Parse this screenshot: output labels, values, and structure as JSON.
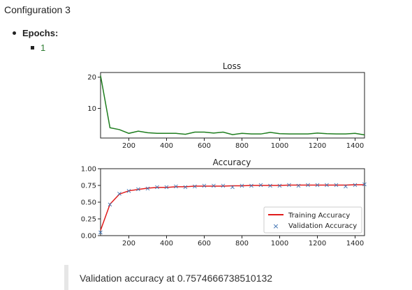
{
  "page": {
    "heading": "Configuration 3",
    "params": [
      {
        "label": "Epochs:",
        "value": "1"
      }
    ],
    "validation_note": "Validation accuracy at 0.7574666738510132"
  },
  "colors": {
    "loss_line": "#1e7d1e",
    "training_line": "#e01b1b",
    "validation_marker": "#3a6fb0"
  },
  "chart_data": [
    {
      "type": "line",
      "title": "Loss",
      "xlabel": "",
      "ylabel": "",
      "xlim": [
        50,
        1450
      ],
      "ylim": [
        0.5,
        21.5
      ],
      "xticks": [
        200,
        400,
        600,
        800,
        1000,
        1200,
        1400
      ],
      "yticks": [
        10,
        20
      ],
      "series": [
        {
          "x": [
            50,
            100,
            150,
            200,
            250,
            300,
            350,
            400,
            450,
            500,
            550,
            600,
            650,
            700,
            750,
            800,
            850,
            900,
            950,
            1000,
            1050,
            1100,
            1150,
            1200,
            1250,
            1300,
            1350,
            1400,
            1450
          ],
          "y": [
            20.5,
            3.8,
            3.2,
            2.0,
            2.7,
            2.2,
            2.0,
            2.0,
            2.0,
            1.7,
            2.4,
            2.4,
            2.1,
            2.4,
            1.6,
            2.0,
            1.8,
            1.8,
            2.3,
            1.9,
            1.8,
            1.8,
            1.8,
            2.1,
            1.9,
            1.8,
            1.8,
            2.0,
            1.5
          ]
        }
      ]
    },
    {
      "type": "line",
      "title": "Accuracy",
      "xlabel": "",
      "ylabel": "",
      "xlim": [
        50,
        1450
      ],
      "ylim": [
        0,
        1
      ],
      "xticks": [
        200,
        400,
        600,
        800,
        1000,
        1200,
        1400
      ],
      "yticks": [
        "0.00",
        "0.25",
        "0.50",
        "0.75",
        "1.00"
      ],
      "legend": "lower-right",
      "series": [
        {
          "name": "Training Accuracy",
          "x": [
            50,
            100,
            150,
            200,
            250,
            300,
            350,
            400,
            450,
            500,
            550,
            600,
            650,
            700,
            750,
            800,
            850,
            900,
            950,
            1000,
            1050,
            1100,
            1150,
            1200,
            1250,
            1300,
            1350,
            1400,
            1450
          ],
          "y": [
            0.08,
            0.47,
            0.62,
            0.67,
            0.69,
            0.71,
            0.72,
            0.72,
            0.73,
            0.73,
            0.74,
            0.74,
            0.74,
            0.74,
            0.745,
            0.745,
            0.75,
            0.75,
            0.75,
            0.75,
            0.755,
            0.755,
            0.755,
            0.755,
            0.755,
            0.755,
            0.755,
            0.76,
            0.76
          ]
        },
        {
          "name": "Validation Accuracy",
          "x": [
            50,
            100,
            150,
            200,
            250,
            300,
            350,
            400,
            450,
            500,
            550,
            600,
            650,
            700,
            750,
            800,
            850,
            900,
            950,
            1000,
            1050,
            1100,
            1150,
            1200,
            1250,
            1300,
            1350,
            1400,
            1450
          ],
          "y": [
            0.05,
            0.47,
            0.63,
            0.67,
            0.7,
            0.71,
            0.73,
            0.73,
            0.74,
            0.73,
            0.74,
            0.75,
            0.75,
            0.75,
            0.73,
            0.75,
            0.75,
            0.76,
            0.75,
            0.75,
            0.76,
            0.75,
            0.76,
            0.76,
            0.76,
            0.76,
            0.74,
            0.76,
            0.77
          ]
        }
      ]
    }
  ]
}
